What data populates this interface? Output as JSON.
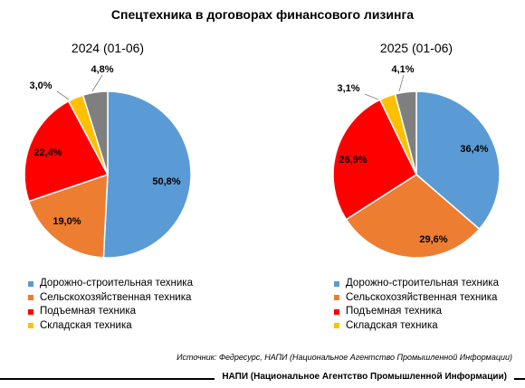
{
  "title": "Спецтехника в договорах финансового лизинга",
  "source_note": "Источник: Федресурс, НАПИ (Национальное Агентство Промышленной Информации)",
  "footer": "НАПИ (Национальное Агентство Промышленной Информации)",
  "colors": {
    "road": "#5b9bd5",
    "agri": "#ed7d31",
    "lift": "#ff0000",
    "warehouse": "#ffc000",
    "other": "#7f7f7f"
  },
  "chart_data": [
    {
      "type": "pie",
      "title": "2024 (01-06)",
      "slices": [
        {
          "name": "Дорожно-строительная техника",
          "value": 50.8,
          "label": "50,8%",
          "color": "#5b9bd5"
        },
        {
          "name": "Сельскохозяйственная техника",
          "value": 19.0,
          "label": "19,0%",
          "color": "#ed7d31"
        },
        {
          "name": "Подъемная техника",
          "value": 22.4,
          "label": "22,4%",
          "color": "#ff0000"
        },
        {
          "name": "Складская техника",
          "value": 3.0,
          "label": "3,0%",
          "color": "#ffc000"
        },
        {
          "name": "",
          "value": 4.8,
          "label": "4,8%",
          "color": "#7f7f7f"
        }
      ],
      "legend": [
        "Дорожно-строительная техника",
        "Сельскохозяйственная техника",
        "Подъемная техника",
        "Складская техника"
      ]
    },
    {
      "type": "pie",
      "title": "2025 (01-06)",
      "slices": [
        {
          "name": "Дорожно-строительная техника",
          "value": 36.4,
          "label": "36,4%",
          "color": "#5b9bd5"
        },
        {
          "name": "Сельскохозяйственная техника",
          "value": 29.6,
          "label": "29,6%",
          "color": "#ed7d31"
        },
        {
          "name": "Подъемная техника",
          "value": 26.9,
          "label": "26,9%",
          "color": "#ff0000"
        },
        {
          "name": "Складская техника",
          "value": 3.1,
          "label": "3,1%",
          "color": "#ffc000"
        },
        {
          "name": "",
          "value": 4.1,
          "label": "4,1%",
          "color": "#7f7f7f"
        }
      ],
      "legend": [
        "Дорожно-строительная техника",
        "Сельскохозяйственная техника",
        "Подъемная техника",
        "Складская техника"
      ]
    }
  ]
}
